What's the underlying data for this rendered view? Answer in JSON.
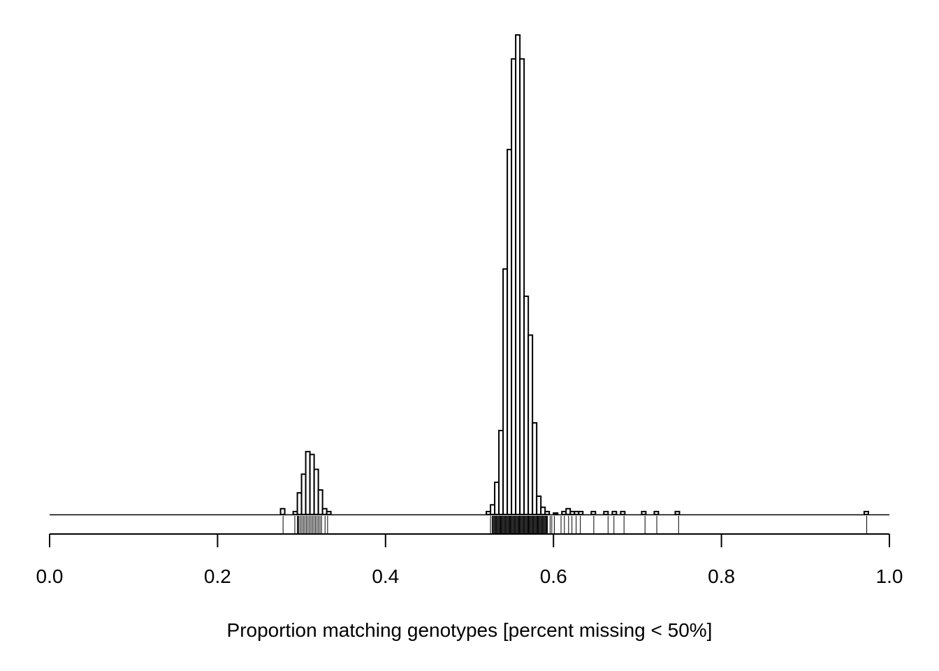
{
  "chart_data": {
    "type": "bar",
    "subtype": "histogram_with_rug",
    "title": "",
    "xlabel": "Proportion matching genotypes [percent missing < 50%]",
    "ylabel": "",
    "xlim": [
      0,
      1
    ],
    "ylim": [
      0,
      100
    ],
    "y_axis_shown": false,
    "grid": false,
    "bin_width": 0.005,
    "x_ticks": [
      0.0,
      0.2,
      0.4,
      0.6,
      0.8,
      1.0
    ],
    "x_tick_labels": [
      "0.0",
      "0.2",
      "0.4",
      "0.6",
      "0.8",
      "1.0"
    ],
    "bins": [
      {
        "x": 0.275,
        "count": 1.2
      },
      {
        "x": 0.29,
        "count": 0.6
      },
      {
        "x": 0.295,
        "count": 4.5
      },
      {
        "x": 0.3,
        "count": 8.4
      },
      {
        "x": 0.305,
        "count": 13.1
      },
      {
        "x": 0.31,
        "count": 12.5
      },
      {
        "x": 0.315,
        "count": 9.4
      },
      {
        "x": 0.32,
        "count": 5.1
      },
      {
        "x": 0.325,
        "count": 1.2
      },
      {
        "x": 0.33,
        "count": 0.6
      },
      {
        "x": 0.52,
        "count": 0.6
      },
      {
        "x": 0.525,
        "count": 2.0
      },
      {
        "x": 0.53,
        "count": 6.7
      },
      {
        "x": 0.535,
        "count": 17.5
      },
      {
        "x": 0.54,
        "count": 51.2
      },
      {
        "x": 0.545,
        "count": 76.1
      },
      {
        "x": 0.55,
        "count": 95.0
      },
      {
        "x": 0.555,
        "count": 100.0
      },
      {
        "x": 0.56,
        "count": 95.0
      },
      {
        "x": 0.565,
        "count": 45.5
      },
      {
        "x": 0.57,
        "count": 37.4
      },
      {
        "x": 0.575,
        "count": 19.1
      },
      {
        "x": 0.58,
        "count": 3.8
      },
      {
        "x": 0.585,
        "count": 1.5
      },
      {
        "x": 0.59,
        "count": 0.6
      },
      {
        "x": 0.6,
        "count": 0.3
      },
      {
        "x": 0.61,
        "count": 0.6
      },
      {
        "x": 0.615,
        "count": 1.2
      },
      {
        "x": 0.62,
        "count": 0.6
      },
      {
        "x": 0.625,
        "count": 0.6
      },
      {
        "x": 0.63,
        "count": 0.6
      },
      {
        "x": 0.645,
        "count": 0.6
      },
      {
        "x": 0.66,
        "count": 0.6
      },
      {
        "x": 0.67,
        "count": 0.6
      },
      {
        "x": 0.68,
        "count": 0.6
      },
      {
        "x": 0.705,
        "count": 0.6
      },
      {
        "x": 0.72,
        "count": 0.6
      },
      {
        "x": 0.745,
        "count": 0.6
      },
      {
        "x": 0.97,
        "count": 0.6
      }
    ],
    "rug_dense_regions": [
      {
        "from": 0.295,
        "to": 0.325,
        "step": 0.0018
      },
      {
        "from": 0.528,
        "to": 0.593,
        "step": 0.0009
      }
    ],
    "rug_points": [
      0.278,
      0.292,
      0.296,
      0.328,
      0.331,
      0.525,
      0.527,
      0.596,
      0.598,
      0.601,
      0.609,
      0.613,
      0.618,
      0.622,
      0.627,
      0.632,
      0.648,
      0.665,
      0.672,
      0.684,
      0.709,
      0.723,
      0.749,
      0.973
    ]
  }
}
